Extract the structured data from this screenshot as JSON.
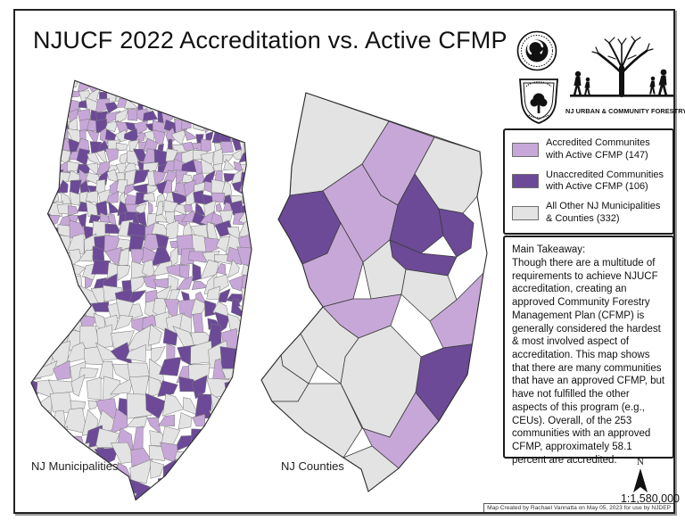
{
  "title": "NJUCF 2022 Accreditation vs. Active CFMP",
  "colors": {
    "accredited": "#c7a7d8",
    "unaccredited": "#6c4a97",
    "other": "#e3e3e3"
  },
  "logos": {
    "forestry_caption": "NJ URBAN & COMMUNITY FORESTRY"
  },
  "legend": {
    "items": [
      {
        "label": "Accredited Communites with Active CFMP (147)",
        "status": "accredited",
        "count": 147
      },
      {
        "label": "Unaccredited Communities with Active CFMP (106)",
        "status": "unaccredited",
        "count": 106
      },
      {
        "label": "All Other NJ Municipalities & Counties (332)",
        "status": "other",
        "count": 332
      }
    ]
  },
  "takeaway": {
    "heading": "Main Takeaway:",
    "body": "Though there are a multitude of requirements to achieve NJUCF accreditation, creating an approved Community Forestry Management Plan (CFMP) is generally considered the hardest & most involved aspect of accreditation. This map shows that there are many communities that have an approved CFMP, but have not fulfilled the other aspects of this program (e.g., CEUs). Overall, of the 253 communities with an approved CFMP, approximately 58.1 percent are accredited."
  },
  "maps": {
    "municipalities": {
      "label": "NJ Municipalities"
    },
    "counties": {
      "label": "NJ Counties",
      "regions": [
        {
          "id": "sussex",
          "status": "other"
        },
        {
          "id": "passaic",
          "status": "accredited"
        },
        {
          "id": "bergen",
          "status": "other"
        },
        {
          "id": "warren",
          "status": "unaccredited"
        },
        {
          "id": "morris",
          "status": "accredited"
        },
        {
          "id": "essex",
          "status": "unaccredited"
        },
        {
          "id": "hudson",
          "status": "unaccredited"
        },
        {
          "id": "union",
          "status": "unaccredited"
        },
        {
          "id": "somerset",
          "status": "other"
        },
        {
          "id": "middlesex",
          "status": "other"
        },
        {
          "id": "hunterdon",
          "status": "accredited"
        },
        {
          "id": "mercer",
          "status": "accredited"
        },
        {
          "id": "monmouth",
          "status": "accredited"
        },
        {
          "id": "ocean",
          "status": "unaccredited"
        },
        {
          "id": "burlington",
          "status": "other"
        },
        {
          "id": "camden",
          "status": "other"
        },
        {
          "id": "gloucester",
          "status": "other"
        },
        {
          "id": "salem",
          "status": "other"
        },
        {
          "id": "cumberland",
          "status": "other"
        },
        {
          "id": "atlantic",
          "status": "accredited"
        },
        {
          "id": "cape_may",
          "status": "other"
        }
      ]
    }
  },
  "compass": {
    "north_label": "N"
  },
  "scale_text": "1:1,580,000",
  "credit": "Map Created by Rachael Vannatta on May 05, 2023 for use by NJDEP"
}
